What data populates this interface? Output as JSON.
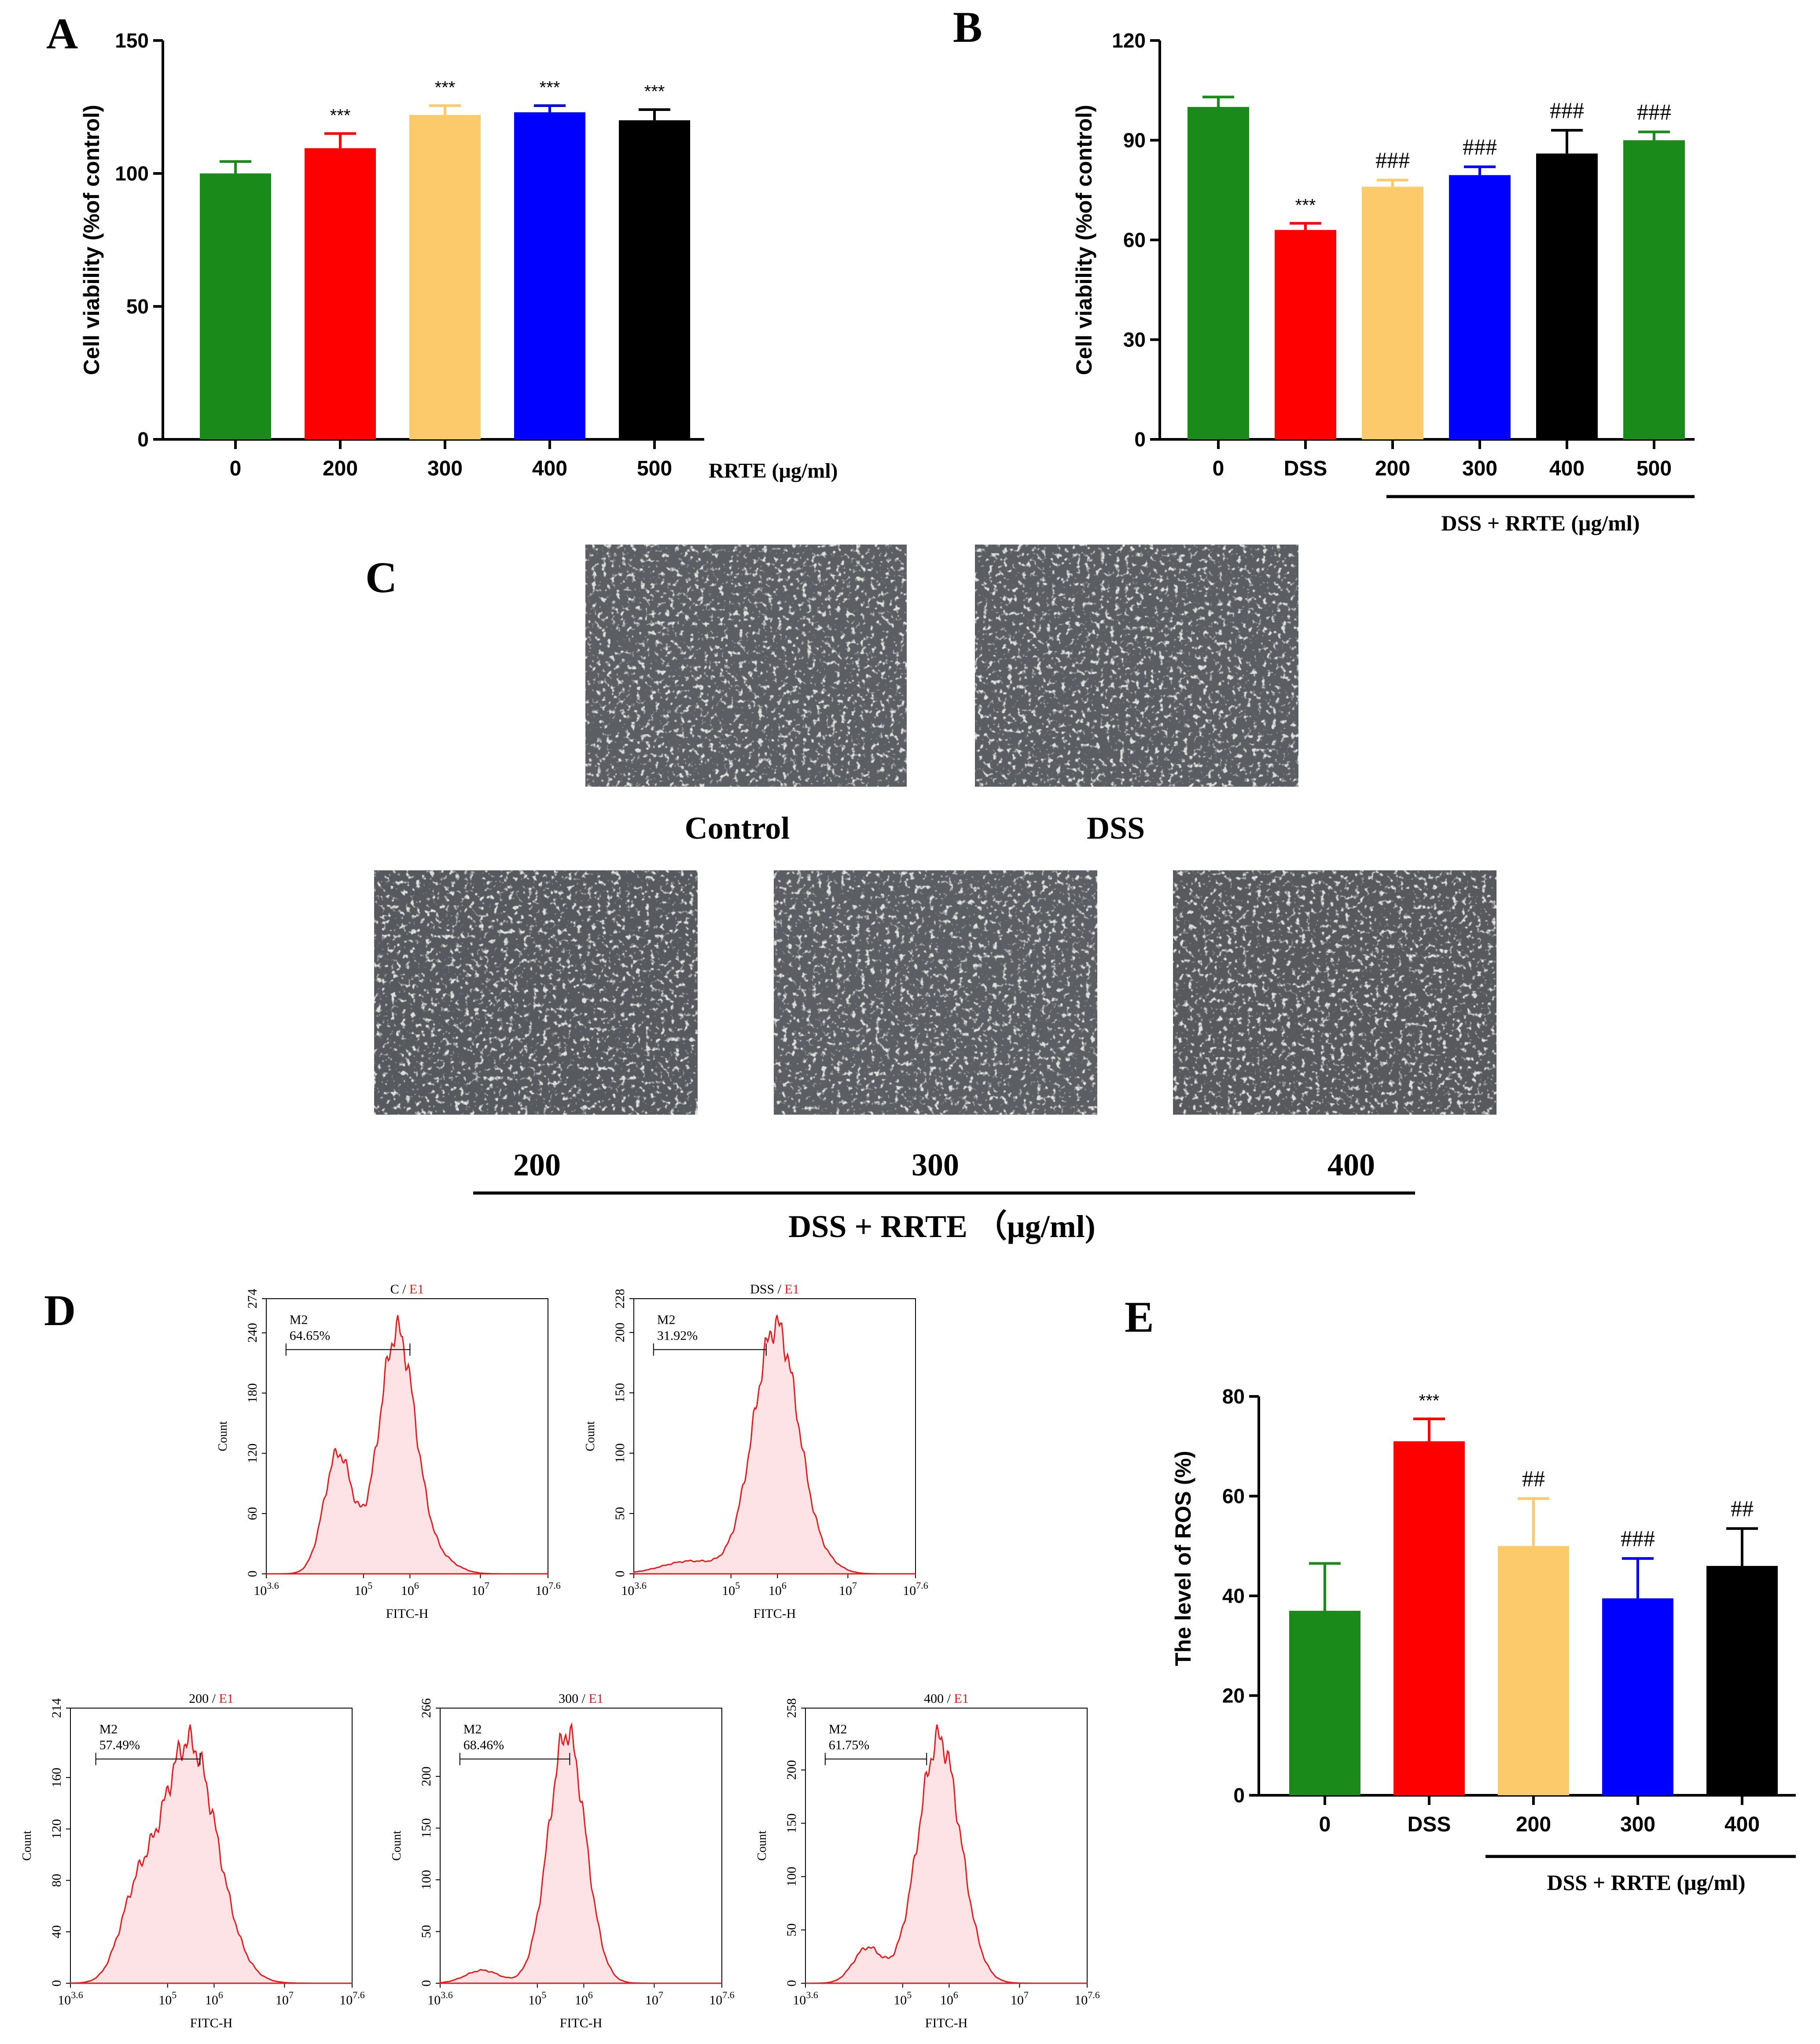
{
  "panels": {
    "A": {
      "letter": "A",
      "ylabel": "Cell viability (%of control)",
      "xlabel_suffix": "RRTE (μg/ml)",
      "chart_data": {
        "type": "bar",
        "title": "",
        "ylabel": "Cell viability (%of control)",
        "xlabel": "RRTE (μg/ml)",
        "ylim": [
          0,
          150
        ],
        "yticks": [
          0,
          50,
          100,
          150
        ],
        "categories": [
          "0",
          "200",
          "300",
          "400",
          "500"
        ],
        "values": [
          100,
          109.5,
          122,
          123,
          120
        ],
        "errors": [
          4.5,
          5.5,
          3.5,
          2.5,
          4
        ],
        "colors": [
          "#1a8a1a",
          "#ff0000",
          "#fcca6b",
          "#0000ff",
          "#000000"
        ],
        "annotations": [
          "",
          "***",
          "***",
          "***",
          "***"
        ]
      }
    },
    "B": {
      "letter": "B",
      "ylabel": "Cell viability (%of control)",
      "group_label": "DSS + RRTE (μg/ml)",
      "chart_data": {
        "type": "bar",
        "title": "",
        "ylabel": "Cell viability (%of control)",
        "xlabel": "DSS + RRTE (μg/ml)",
        "ylim": [
          0,
          120
        ],
        "yticks": [
          0,
          30,
          60,
          90,
          120
        ],
        "categories": [
          "0",
          "DSS",
          "200",
          "300",
          "400",
          "500"
        ],
        "values": [
          100,
          63,
          76,
          79.5,
          86,
          90
        ],
        "errors": [
          3,
          2,
          2,
          2.5,
          7,
          2.5
        ],
        "colors": [
          "#1a8a1a",
          "#ff0000",
          "#fcca6b",
          "#0000ff",
          "#000000",
          "#1a8a1a"
        ],
        "annotations": [
          "",
          "***",
          "###",
          "###",
          "###",
          "###"
        ]
      }
    },
    "C": {
      "letter": "C",
      "top_labels": [
        "Control",
        "DSS"
      ],
      "bottom_labels": [
        "200",
        "300",
        "400"
      ],
      "group_label": "DSS + RRTE （μg/ml)"
    },
    "D": {
      "letter": "D",
      "plots": [
        {
          "sample": "C",
          "suffix": "E1",
          "ymax": 274,
          "yticks": [
            "0",
            "60",
            "120",
            "180",
            "240",
            "274"
          ],
          "gate": "M2",
          "percent": "64.65%"
        },
        {
          "sample": "DSS",
          "suffix": "E1",
          "ymax": 228,
          "yticks": [
            "0",
            "50",
            "100",
            "150",
            "200",
            "228"
          ],
          "gate": "M2",
          "percent": "31.92%"
        },
        {
          "sample": "200",
          "suffix": "E1",
          "ymax": 214,
          "yticks": [
            "0",
            "40",
            "80",
            "120",
            "160",
            "214"
          ],
          "gate": "M2",
          "percent": "57.49%"
        },
        {
          "sample": "300",
          "suffix": "E1",
          "ymax": 266,
          "yticks": [
            "0",
            "50",
            "100",
            "150",
            "200",
            "266"
          ],
          "gate": "M2",
          "percent": "68.46%"
        },
        {
          "sample": "400",
          "suffix": "E1",
          "ymax": 258,
          "yticks": [
            "0",
            "50",
            "100",
            "150",
            "200",
            "258"
          ],
          "gate": "M2",
          "percent": "61.75%"
        }
      ],
      "xlabel": "FITC-H",
      "ylabel": "Count",
      "xtick_bases": [
        "10",
        "10",
        "10",
        "10",
        "10"
      ],
      "xtick_exps": [
        "3.6",
        "5",
        "6",
        "7",
        "7.6"
      ]
    },
    "E": {
      "letter": "E",
      "ylabel": "The level of ROS (%)",
      "group_label": "DSS + RRTE (μg/ml)",
      "chart_data": {
        "type": "bar",
        "title": "",
        "ylabel": "The level of ROS (%)",
        "xlabel": "DSS + RRTE (μg/ml)",
        "ylim": [
          0,
          80
        ],
        "yticks": [
          0,
          20,
          40,
          60,
          80
        ],
        "categories": [
          "0",
          "DSS",
          "200",
          "300",
          "400"
        ],
        "values": [
          37,
          71,
          50,
          39.5,
          46
        ],
        "errors": [
          9.5,
          4.5,
          9.5,
          8,
          7.5
        ],
        "colors": [
          "#1a8a1a",
          "#ff0000",
          "#fcca6b",
          "#0000ff",
          "#000000"
        ],
        "annotations": [
          "",
          "***",
          "##",
          "###",
          "##"
        ]
      }
    }
  }
}
